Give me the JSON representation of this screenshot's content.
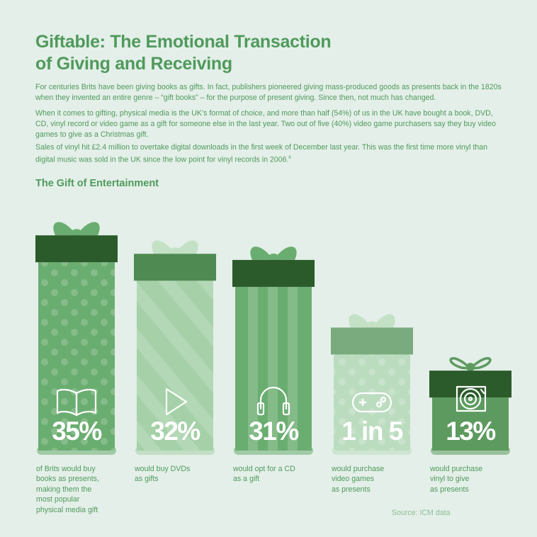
{
  "title": [
    "Giftable: The Emotional Transaction",
    "of Giving and Receiving"
  ],
  "paragraphs": {
    "p1": "For centuries Brits have been giving books as gifts. In fact, publishers pioneered giving mass-produced goods as presents back in the 1820s when they invented an entire genre – “gift books” – for the purpose of present giving. Since then, not much has changed.",
    "p2": "When it comes to gifting, physical media is the UK’s format of choice, and more than half (54%) of us in the UK have bought a book, DVD, CD, vinyl record or video game as a gift for someone else in the last year. Two out of five (40%) video game purchasers say they buy video games to give as a Christmas gift.",
    "p3": "Sales of vinyl hit £2.4 million to overtake digital downloads in the first week of December last year. This was the first time more vinyl than digital music was sold in the UK since the low point for vinyl records in 2006.",
    "p3_footnote": "6"
  },
  "chart_data": {
    "type": "bar",
    "title": "The Gift of Entertainment",
    "categories": [
      "Books",
      "DVDs",
      "CDs",
      "Video games",
      "Vinyl"
    ],
    "values": [
      35,
      32,
      31,
      20,
      13
    ],
    "value_labels": [
      "35%",
      "32%",
      "31%",
      "1 in 5",
      "13%"
    ],
    "captions": [
      [
        "of Brits would buy",
        "books as presents,",
        "making them the",
        "most popular",
        "physical media gift"
      ],
      [
        "would buy DVDs",
        "as gifts"
      ],
      [
        "would opt for a CD",
        "as a gift"
      ],
      [
        "would purchase",
        "video games",
        "as presents"
      ],
      [
        "would purchase",
        "vinyl to give",
        "as presents"
      ]
    ],
    "icons": [
      "open-book-icon",
      "play-icon",
      "headphones-icon",
      "gamepad-icon",
      "vinyl-record-icon"
    ],
    "colors": {
      "background": "#e4efe9",
      "text": "#4f9a5b",
      "dark_lid": "#2b5a2b",
      "box_books": "#6aad70",
      "box_dvds": "#a5d0a8",
      "lid_dvds": "#4f8a52",
      "box_cds": "#6aad70",
      "box_games": "#bcdcbf",
      "lid_games": "#7aab7e",
      "box_vinyl": "#5d9a5f",
      "bow_light": "#c4e1c6",
      "bow_mid": "#6aad70"
    },
    "source": "Source: ICM data"
  }
}
